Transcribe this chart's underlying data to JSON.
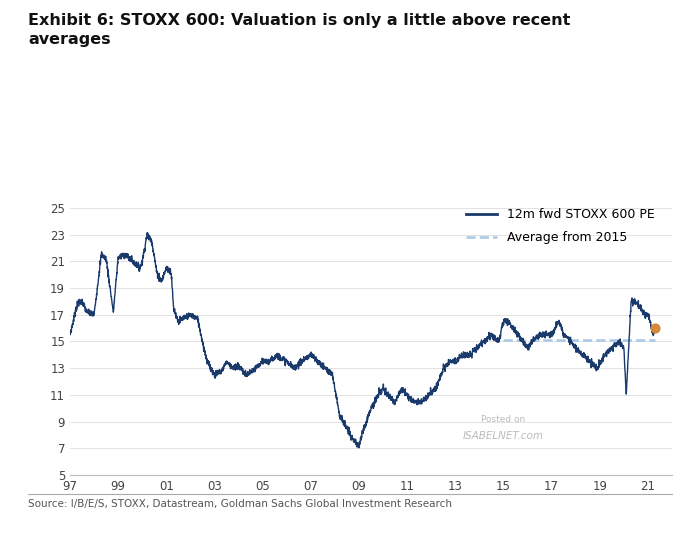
{
  "title": "Exhibit 6: STOXX 600: Valuation is only a little above recent\naverages",
  "source": "Source: I/B/E/S, STOXX, Datastream, Goldman Sachs Global Investment Research",
  "line_label": "12m fwd STOXX 600 PE",
  "avg_label": "Average from 2015",
  "line_color": "#1a3a6b",
  "avg_color": "#a8c8e8",
  "dot_color": "#d4893a",
  "avg_value": 15.1,
  "ylim": [
    5,
    26
  ],
  "yticks": [
    5,
    7,
    9,
    11,
    13,
    15,
    17,
    19,
    21,
    23,
    25
  ],
  "xticks": [
    97,
    99,
    101,
    103,
    105,
    107,
    109,
    111,
    113,
    115,
    117,
    119,
    121
  ],
  "xticklabels": [
    "97",
    "99",
    "01",
    "03",
    "05",
    "07",
    "09",
    "11",
    "13",
    "15",
    "17",
    "19",
    "21"
  ],
  "background_color": "#ffffff",
  "watermark_line1": "Posted on",
  "watermark_line2": "ISABELNET.com"
}
